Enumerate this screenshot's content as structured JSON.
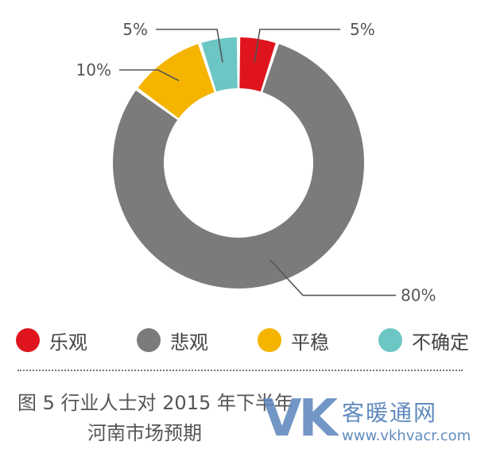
{
  "chart_data": {
    "type": "pie",
    "donut": true,
    "slices": [
      {
        "label": "乐观",
        "value": 5,
        "data_label": "5%",
        "color": "#e0141e"
      },
      {
        "label": "悲观",
        "value": 80,
        "data_label": "80%",
        "color": "#7b7b7b"
      },
      {
        "label": "平稳",
        "value": 10,
        "data_label": "10%",
        "color": "#f5b400"
      },
      {
        "label": "不确定",
        "value": 5,
        "data_label": "5%",
        "color": "#6cc6c4"
      }
    ],
    "legend_placement": "bottom",
    "title": "图 5   行业人士对 2015 年下半年河南市场预期"
  },
  "caption": {
    "line1": "图 5   行业人士对 2015 年下半年",
    "line2": "河南市场预期"
  },
  "watermark": {
    "logo": "VK",
    "name": "客暖通网",
    "url": "www.vkhvacr.com"
  }
}
